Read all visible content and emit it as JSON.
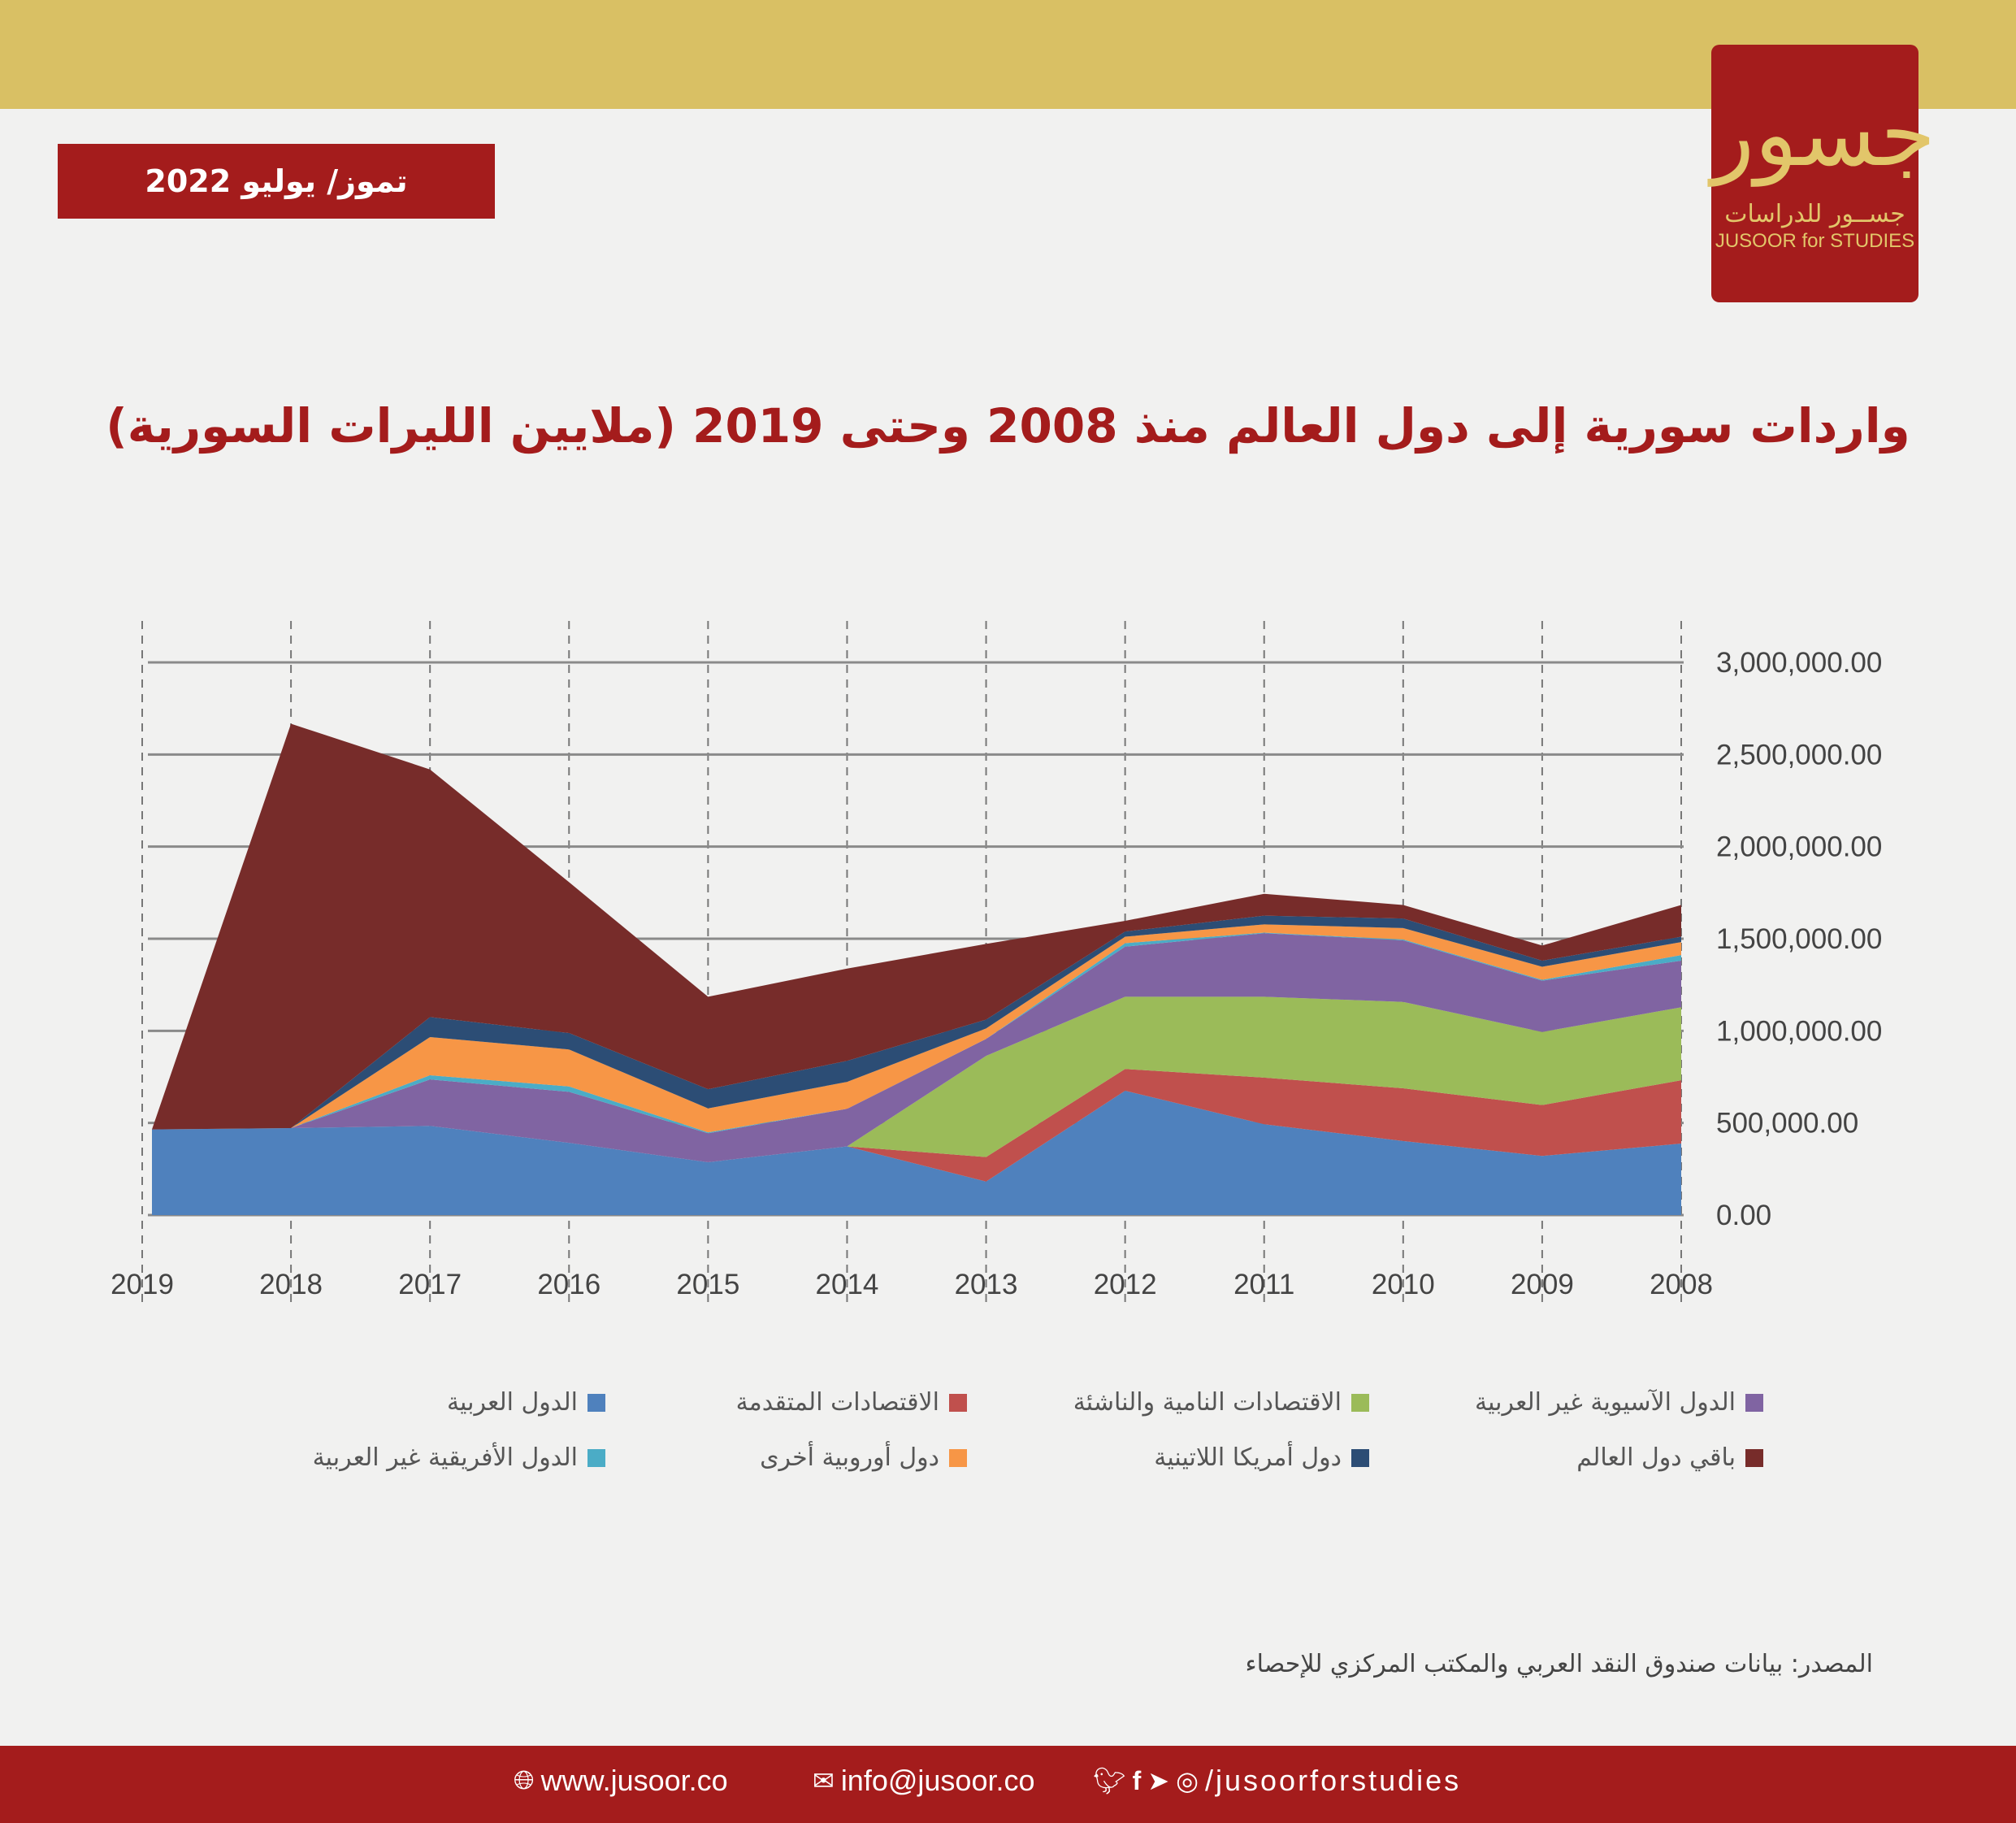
{
  "header": {
    "date_label": "تموز/ يوليو 2022",
    "logo": {
      "mark": "جسور",
      "arabic": "جســور للدراسات",
      "english": "JUSOOR for STUDIES"
    }
  },
  "chart_data": {
    "type": "area",
    "stacked": true,
    "title": "واردات سورية إلى دول العالم منذ 2008 وحتى 2019 (ملايين الليرات السورية)",
    "categories": [
      "2019",
      "2018",
      "2017",
      "2016",
      "2015",
      "2014",
      "2013",
      "2012",
      "2011",
      "2010",
      "2009",
      "2008"
    ],
    "ylim": [
      0,
      3000000
    ],
    "yticks": [
      "0.00",
      "500,000.00",
      "1,000,000.00",
      "1,500,000.00",
      "2,000,000.00",
      "2,500,000.00",
      "3,000,000.00"
    ],
    "grid": true,
    "y_axis_side": "right",
    "legend_position": "bottom",
    "series": [
      {
        "name": "الدول العربية",
        "color": "#4f81bd",
        "values": [
          465000,
          472000,
          484000,
          392000,
          287000,
          373000,
          182000,
          675000,
          493000,
          402000,
          321000,
          388000
        ]
      },
      {
        "name": "الاقتصادات المتقدمة",
        "color": "#c0504d",
        "values": [
          0,
          0,
          0,
          0,
          0,
          0,
          133000,
          118000,
          253000,
          286000,
          276000,
          344000
        ]
      },
      {
        "name": "الاقتصادات النامية والناشئة",
        "color": "#9bbb59",
        "values": [
          0,
          0,
          0,
          0,
          0,
          0,
          549000,
          392000,
          439000,
          469000,
          397000,
          396000
        ]
      },
      {
        "name": "الدول الآسيوية غير العربية",
        "color": "#8064a2",
        "values": [
          0,
          0,
          252000,
          277000,
          157000,
          204000,
          92000,
          272000,
          345000,
          334000,
          278000,
          253000
        ]
      },
      {
        "name": "الدول الأفريقية غير العربية",
        "color": "#4bacc6",
        "values": [
          0,
          0,
          23000,
          29000,
          5000,
          0,
          0,
          19000,
          3000,
          5000,
          5000,
          30000
        ]
      },
      {
        "name": "دول أوروبية أخرى",
        "color": "#f79646",
        "values": [
          0,
          0,
          207000,
          201000,
          130000,
          146000,
          57000,
          35000,
          45000,
          62000,
          71000,
          71000
        ]
      },
      {
        "name": "دول أمريكا اللاتينية",
        "color": "#2c4d75",
        "values": [
          0,
          0,
          109000,
          89000,
          104000,
          114000,
          48000,
          28000,
          47000,
          52000,
          33000,
          29000
        ]
      },
      {
        "name": "باقي دول العالم",
        "color": "#772c2a",
        "values": [
          0,
          2195000,
          1344000,
          819000,
          502000,
          501000,
          411000,
          58000,
          119000,
          73000,
          82000,
          172000
        ]
      }
    ]
  },
  "source": "المصدر: بيانات صندوق النقد العربي والمكتب المركزي للإحصاء",
  "footer": {
    "website": "www.jusoor.co",
    "email": "info@jusoor.co",
    "social": "/jusoorforstudies"
  }
}
